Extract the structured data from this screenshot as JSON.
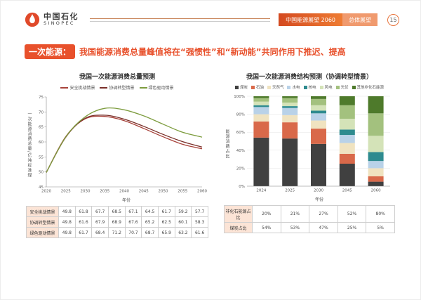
{
  "header": {
    "logo_cn": "中国石化",
    "logo_en": "SINOPEC",
    "banner_title": "中国能源展望 2060",
    "banner_section": "总体展望",
    "page_number": "15"
  },
  "title": {
    "badge": "一次能源：",
    "text": "我国能源消费总量峰值将在“强惯性”和“新动能”共同作用下推迟、提高"
  },
  "colors": {
    "accent_orange": "#e8512c",
    "banner_light": "#f09a6e",
    "table_label_bg": "#fce4d6"
  },
  "chart_data": [
    {
      "type": "line",
      "title": "我国一次能源消费总量预测",
      "xlabel": "年份",
      "ylabel": "一次能源消费总量/亿吨标准煤",
      "ylim": [
        45,
        75
      ],
      "yticks": [
        45,
        50,
        55,
        60,
        65,
        70,
        75
      ],
      "grid": false,
      "legend_position": "top",
      "x": [
        2020,
        2025,
        2030,
        2035,
        2040,
        2045,
        2050,
        2055,
        2060
      ],
      "series": [
        {
          "name": "安全挑战情景",
          "color": "#a8433b",
          "values": [
            49.8,
            61.8,
            67.7,
            68.5,
            67.1,
            64.5,
            61.7,
            59.2,
            57.7
          ]
        },
        {
          "name": "协调转型情景",
          "color": "#7a2f29",
          "values": [
            49.8,
            61.6,
            67.9,
            68.9,
            67.6,
            65.2,
            62.5,
            60.1,
            58.3
          ]
        },
        {
          "name": "绿色驱动情景",
          "color": "#7d9c3e",
          "values": [
            49.8,
            61.7,
            68.4,
            71.2,
            70.7,
            68.7,
            65.9,
            63.2,
            61.6
          ]
        }
      ]
    },
    {
      "type": "stacked-bar-100",
      "title": "我国一次能源消费结构预测（协调转型情景）",
      "xlabel": "年份",
      "ylabel": "能源消费占比",
      "ylim": [
        0,
        100
      ],
      "yticks": [
        "0%",
        "20%",
        "40%",
        "60%",
        "80%",
        "100%"
      ],
      "grid": true,
      "legend_position": "top",
      "categories": [
        "2024",
        "2025",
        "2030",
        "2045",
        "2060"
      ],
      "series": [
        {
          "name": "煤炭",
          "color": "#404040",
          "values": [
            54,
            53,
            47,
            25,
            5
          ]
        },
        {
          "name": "石油",
          "color": "#d9694a",
          "values": [
            18,
            18,
            17,
            11,
            6
          ]
        },
        {
          "name": "天然气",
          "color": "#f0e3c0",
          "values": [
            8,
            8,
            9,
            12,
            9
          ]
        },
        {
          "name": "水电",
          "color": "#b9d2e8",
          "values": [
            8,
            8,
            8,
            9,
            8
          ]
        },
        {
          "name": "核电",
          "color": "#2e8b8f",
          "values": [
            2,
            2,
            3,
            6,
            10
          ]
        },
        {
          "name": "风电",
          "color": "#d4e3b8",
          "values": [
            4,
            4,
            6,
            12,
            18
          ]
        },
        {
          "name": "光伏",
          "color": "#a3c17e",
          "values": [
            4,
            5,
            7,
            15,
            25
          ]
        },
        {
          "name": "其他非化石能源",
          "color": "#4e7a2b",
          "values": [
            2,
            2,
            3,
            10,
            19
          ]
        }
      ]
    }
  ],
  "structure_table": {
    "rows": [
      {
        "label": "非化石能源占比",
        "values": [
          "20%",
          "21%",
          "27%",
          "52%",
          "80%"
        ]
      },
      {
        "label": "煤炭占比",
        "values": [
          "54%",
          "53%",
          "47%",
          "25%",
          "5%"
        ]
      }
    ]
  }
}
